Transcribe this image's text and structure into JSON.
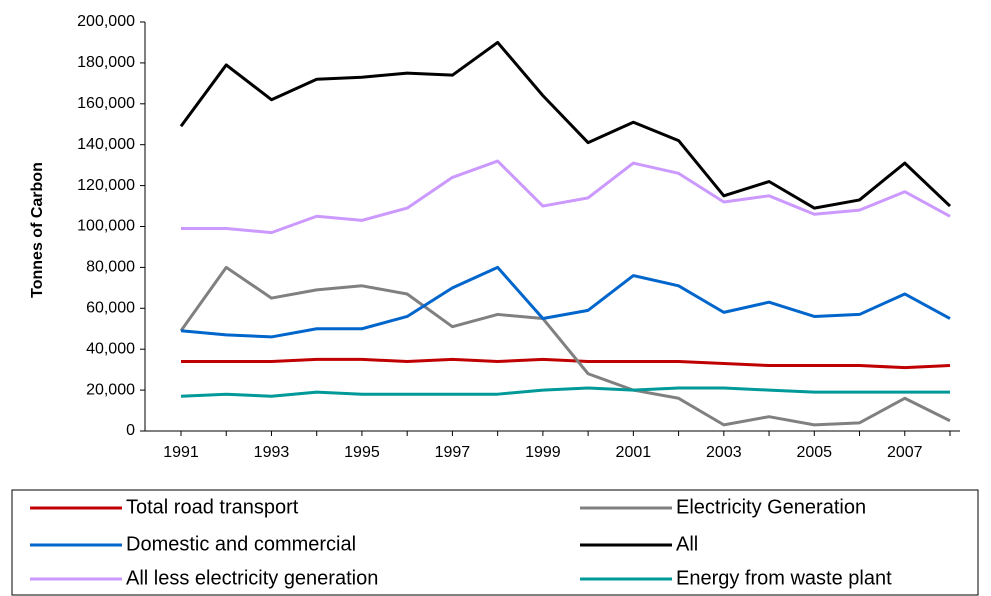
{
  "chart_data": {
    "type": "line",
    "y_label": "Tonnes of Carbon",
    "categories": [
      "1991",
      null,
      "1993",
      null,
      "1995",
      null,
      "1997",
      null,
      "1999",
      null,
      "2001",
      null,
      "2003",
      null,
      "2005",
      null,
      "2007",
      null
    ],
    "series": [
      {
        "name": "Total road transport",
        "color": "#c00000",
        "values": [
          34000,
          34000,
          34000,
          35000,
          35000,
          34000,
          35000,
          34000,
          35000,
          34000,
          34000,
          34000,
          33000,
          32000,
          32000,
          32000,
          31000,
          32000
        ]
      },
      {
        "name": "Electricity Generation",
        "color": "#808080",
        "values": [
          49000,
          80000,
          65000,
          69000,
          71000,
          67000,
          51000,
          57000,
          55000,
          28000,
          20000,
          16000,
          3000,
          7000,
          3000,
          4000,
          16000,
          5000
        ]
      },
      {
        "name": "Domestic and commercial",
        "color": "#0066cc",
        "values": [
          49000,
          47000,
          46000,
          50000,
          50000,
          56000,
          70000,
          80000,
          55000,
          59000,
          76000,
          71000,
          58000,
          63000,
          56000,
          57000,
          67000,
          55000
        ]
      },
      {
        "name": "All",
        "color": "#000000",
        "values": [
          149000,
          179000,
          162000,
          172000,
          173000,
          175000,
          174000,
          190000,
          164000,
          141000,
          151000,
          142000,
          115000,
          122000,
          109000,
          113000,
          131000,
          110000
        ]
      },
      {
        "name": "All less electricity generation",
        "color": "#cc99ff",
        "values": [
          99000,
          99000,
          97000,
          105000,
          103000,
          109000,
          124000,
          132000,
          110000,
          114000,
          131000,
          126000,
          112000,
          115000,
          106000,
          108000,
          117000,
          105000
        ]
      },
      {
        "name": "Energy from waste plant",
        "color": "#009999",
        "values": [
          17000,
          18000,
          17000,
          19000,
          18000,
          18000,
          18000,
          18000,
          20000,
          21000,
          20000,
          21000,
          21000,
          20000,
          19000,
          19000,
          19000,
          19000
        ]
      }
    ],
    "ylim": [
      0,
      200000
    ],
    "yticks": [
      0,
      {
        "value": 20000,
        "label": "20,000"
      },
      {
        "value": 40000,
        "label": "40,000"
      },
      {
        "value": 60000,
        "label": "60,000"
      },
      {
        "value": 80000,
        "label": "80,000"
      },
      {
        "value": 100000,
        "label": "100,000"
      },
      {
        "value": 120000,
        "label": "120,000"
      },
      {
        "value": 140000,
        "label": "140,000"
      },
      {
        "value": 160000,
        "label": "160,000"
      },
      {
        "value": 180000,
        "label": "180,000"
      },
      {
        "value": 200000,
        "label": "200,000"
      }
    ]
  }
}
